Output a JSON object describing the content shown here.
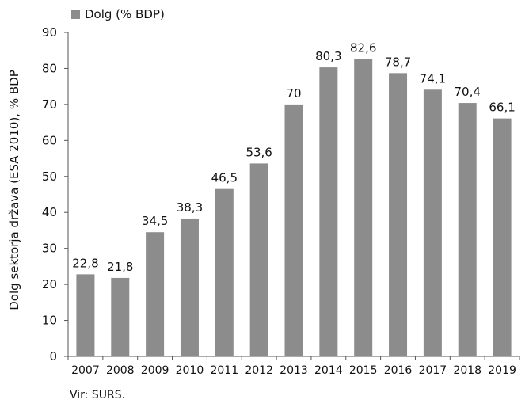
{
  "chart_data": {
    "type": "bar",
    "title": "",
    "categories": [
      "2007",
      "2008",
      "2009",
      "2010",
      "2011",
      "2012",
      "2013",
      "2014",
      "2015",
      "2016",
      "2017",
      "2018",
      "2019"
    ],
    "values": [
      22.8,
      21.8,
      34.5,
      38.3,
      46.5,
      53.6,
      70,
      80.3,
      82.6,
      78.7,
      74.1,
      70.4,
      66.1
    ],
    "data_labels": [
      "22,8",
      "21,8",
      "34,5",
      "38,3",
      "46,5",
      "53,6",
      "70",
      "80,3",
      "82,6",
      "78,7",
      "74,1",
      "70,4",
      "66,1"
    ],
    "series": [
      {
        "name": "Dolg (% BDP)",
        "color": "#8c8c8c"
      }
    ],
    "ylabel": "Dolg sektorja država (ESA 2010), % BDP",
    "xlabel": "",
    "ylim": [
      0,
      90
    ],
    "yticks": [
      0,
      10,
      20,
      30,
      40,
      50,
      60,
      70,
      80,
      90
    ],
    "grid": false,
    "legend_position": "top-left"
  },
  "source_note": "Vir: SURS."
}
